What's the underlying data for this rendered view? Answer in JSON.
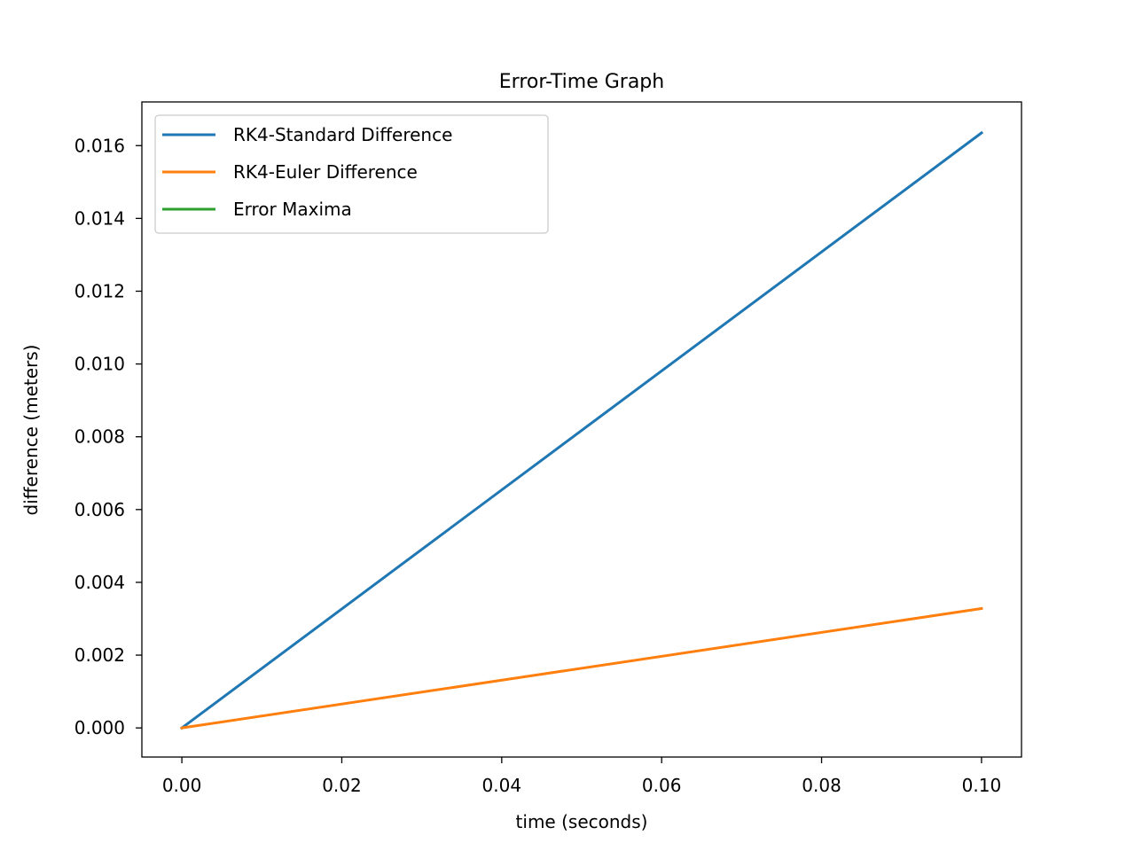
{
  "chart_data": {
    "type": "line",
    "title": "Error-Time Graph",
    "xlabel": "time (seconds)",
    "ylabel": "difference (meters)",
    "xlim": [
      -0.005,
      0.105
    ],
    "ylim": [
      -0.0008,
      0.0172
    ],
    "x_ticks": [
      0.0,
      0.02,
      0.04,
      0.06,
      0.08,
      0.1
    ],
    "x_tick_labels": [
      "0.00",
      "0.02",
      "0.04",
      "0.06",
      "0.08",
      "0.10"
    ],
    "y_ticks": [
      0.0,
      0.002,
      0.004,
      0.006,
      0.008,
      0.01,
      0.012,
      0.014,
      0.016
    ],
    "y_tick_labels": [
      "0.000",
      "0.002",
      "0.004",
      "0.006",
      "0.008",
      "0.010",
      "0.012",
      "0.014",
      "0.016"
    ],
    "grid": false,
    "legend_position": "upper-left",
    "series": [
      {
        "name": "RK4-Standard Difference",
        "color": "#1f77b4",
        "x": [
          0.0,
          0.1
        ],
        "y": [
          0.0,
          0.01635
        ]
      },
      {
        "name": "RK4-Euler Difference",
        "color": "#ff7f0e",
        "x": [
          0.0,
          0.1
        ],
        "y": [
          0.0,
          0.00328
        ]
      },
      {
        "name": "Error Maxima",
        "color": "#2ca02c",
        "x": [],
        "y": []
      }
    ]
  }
}
